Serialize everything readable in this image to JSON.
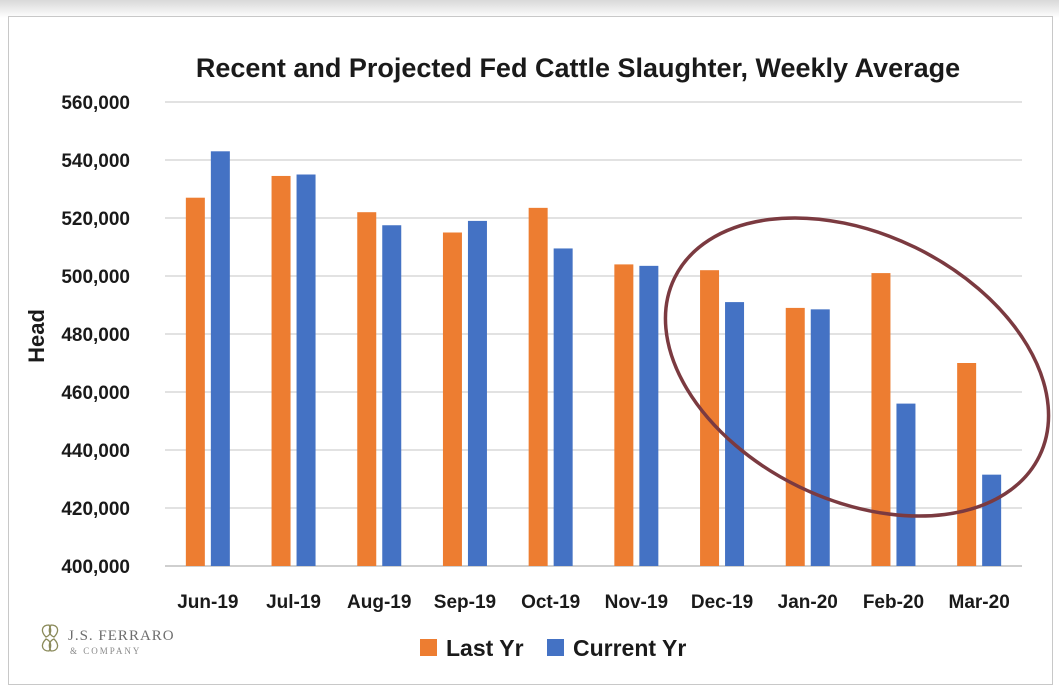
{
  "chart_data": {
    "type": "bar",
    "title": "Recent and Projected Fed Cattle Slaughter, Weekly Average",
    "ylabel": "Head",
    "xlabel": "",
    "ylim": [
      400000,
      560000
    ],
    "yticks": [
      400000,
      420000,
      440000,
      460000,
      480000,
      500000,
      520000,
      540000,
      560000
    ],
    "ytick_labels": [
      "400,000",
      "420,000",
      "440,000",
      "460,000",
      "480,000",
      "500,000",
      "520,000",
      "540,000",
      "560,000"
    ],
    "categories": [
      "Jun-19",
      "Jul-19",
      "Aug-19",
      "Sep-19",
      "Oct-19",
      "Nov-19",
      "Dec-19",
      "Jan-20",
      "Feb-20",
      "Mar-20"
    ],
    "series": [
      {
        "name": "Last Yr",
        "color": "#ED7D31",
        "values": [
          527000,
          534500,
          522000,
          515000,
          523500,
          504000,
          502000,
          489000,
          501000,
          470000
        ]
      },
      {
        "name": "Current Yr",
        "color": "#4472C4",
        "values": [
          543000,
          535000,
          517500,
          519000,
          509500,
          503500,
          491000,
          488500,
          456000,
          431500
        ]
      }
    ],
    "grid": true,
    "legend_position": "bottom",
    "annotation": {
      "shape": "ellipse",
      "color": "#7B3A40",
      "encloses": [
        "Dec-19",
        "Jan-20",
        "Feb-20",
        "Mar-20"
      ]
    }
  },
  "logo": {
    "name": "J.S. FERRARO",
    "sub": "& COMPANY"
  }
}
